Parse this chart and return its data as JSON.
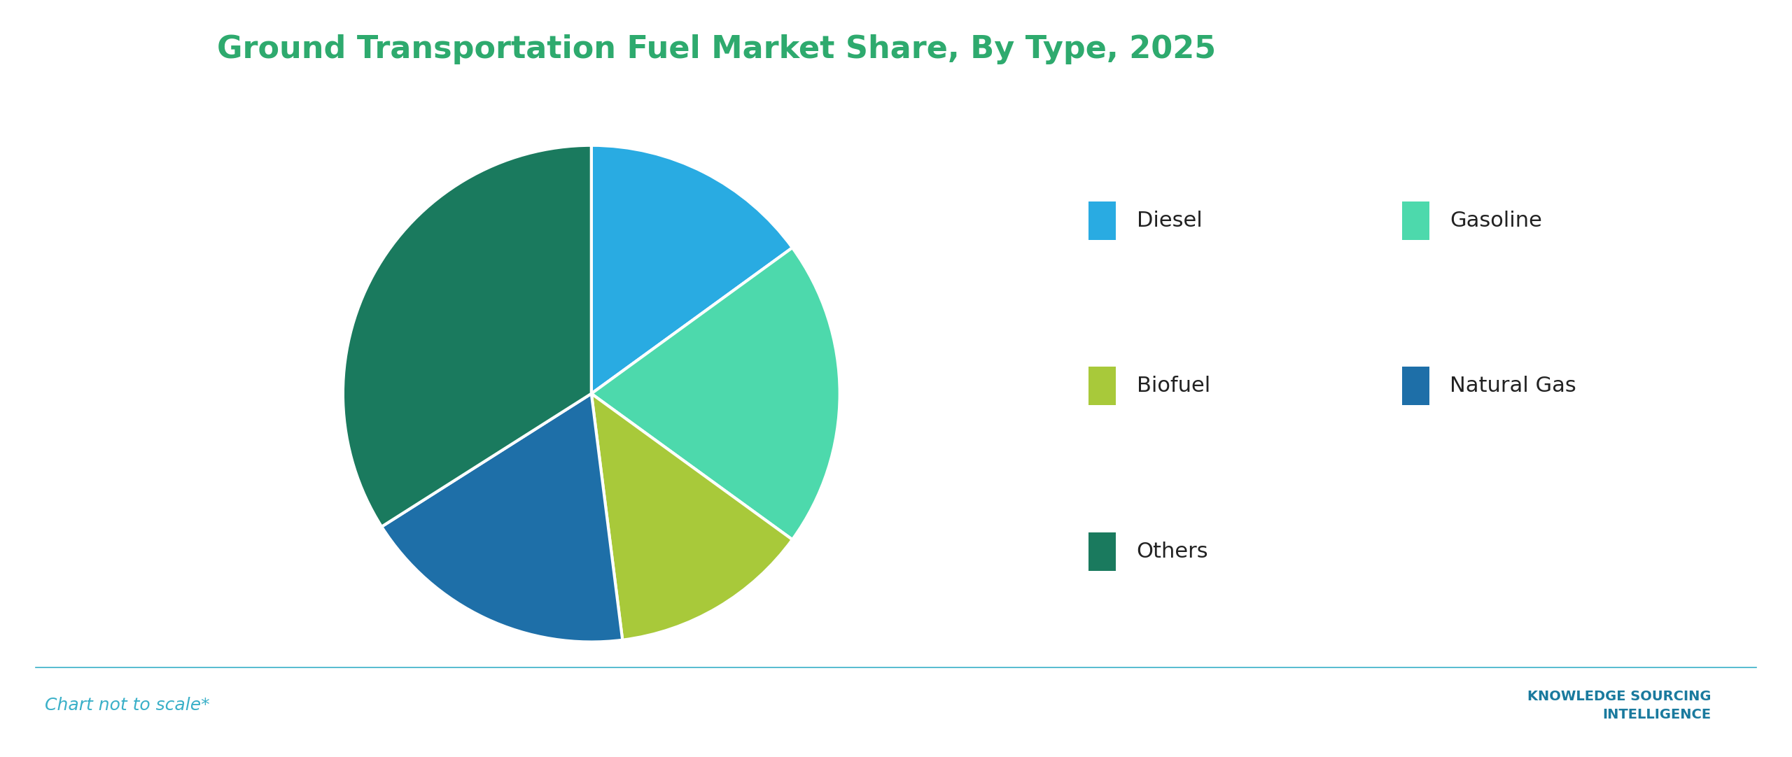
{
  "title": "Ground Transportation Fuel Market Share, By Type, 2025",
  "title_color": "#2eaa6e",
  "title_fontsize": 32,
  "background_color": "#ffffff",
  "footer_text": "Chart not to scale*",
  "footer_color": "#3ab0c8",
  "segments": [
    {
      "label": "Diesel",
      "value": 15,
      "color": "#29abe2"
    },
    {
      "label": "Gasoline",
      "value": 20,
      "color": "#4dd9ac"
    },
    {
      "label": "Biofuel",
      "value": 13,
      "color": "#a8c93a"
    },
    {
      "label": "Natural Gas",
      "value": 18,
      "color": "#1e6fa8"
    },
    {
      "label": "Others",
      "value": 34,
      "color": "#1a7a5e"
    }
  ],
  "legend_labels": [
    "Diesel",
    "Gasoline",
    "Biofuel",
    "Natural Gas",
    "Others"
  ],
  "legend_colors": [
    "#29abe2",
    "#4dd9ac",
    "#a8c93a",
    "#1e6fa8",
    "#1a7a5e"
  ],
  "start_angle": 90,
  "legend_fontsize": 22,
  "separator_color": "#3ab0c8",
  "separator_linewidth": 1.2
}
